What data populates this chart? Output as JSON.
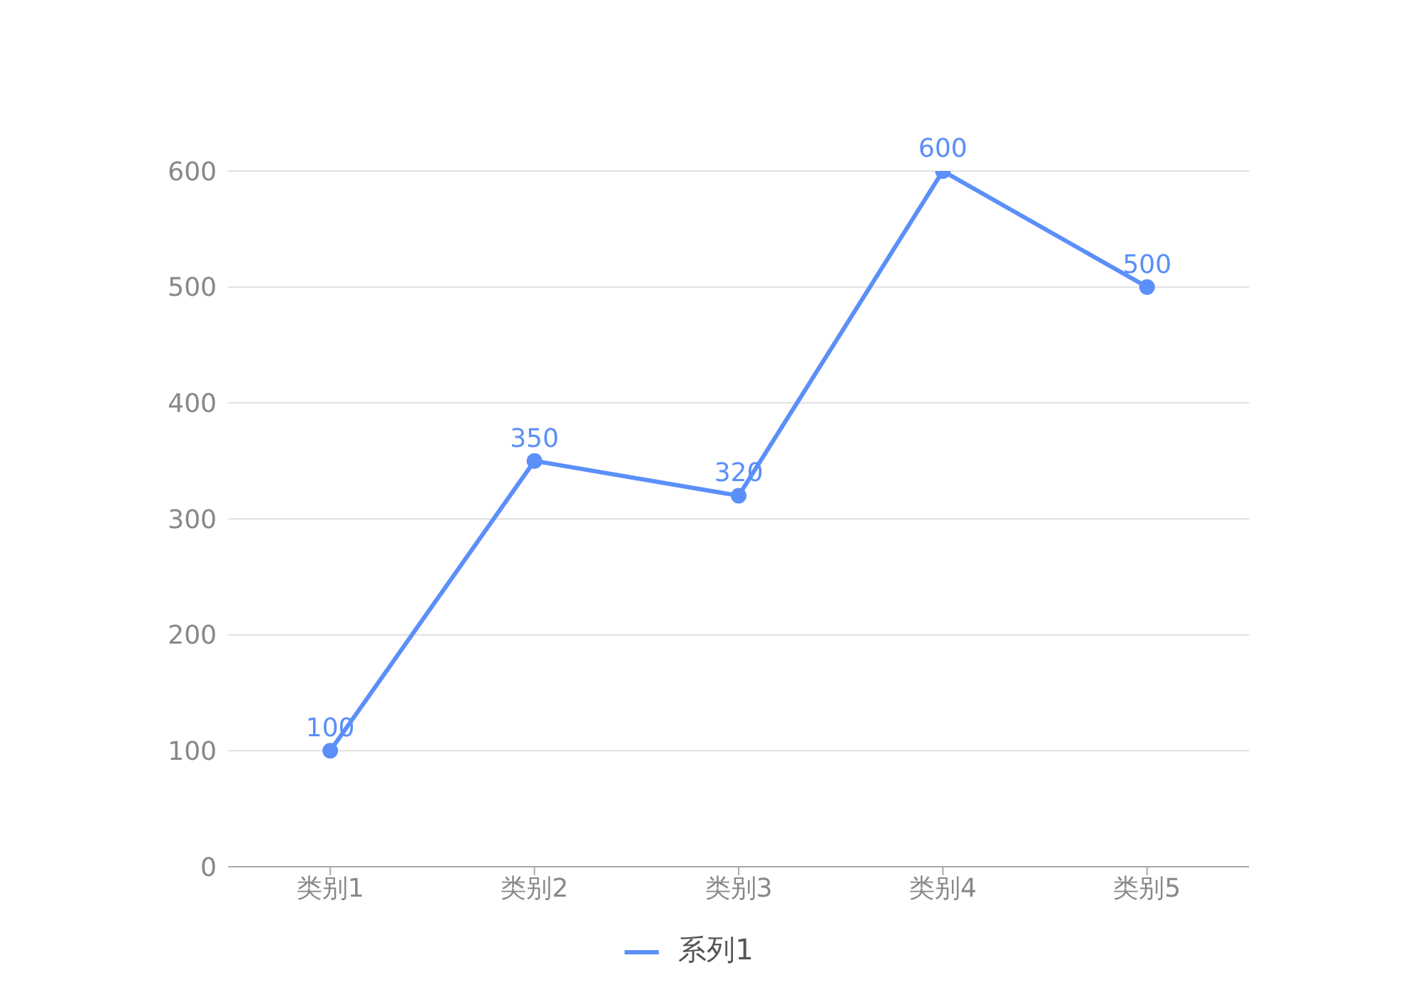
{
  "chart_data": {
    "type": "line",
    "categories": [
      "类别1",
      "类别2",
      "类别3",
      "类别4",
      "类别5"
    ],
    "series": [
      {
        "name": "系列1",
        "color": "#5b8ff9",
        "values": [
          100,
          350,
          320,
          600,
          500
        ]
      }
    ],
    "ylim": [
      0,
      600
    ],
    "yticks": [
      0,
      100,
      200,
      300,
      400,
      500,
      600
    ],
    "grid": "y",
    "legend": "bottom",
    "marker": "circle",
    "data_labels": true
  }
}
